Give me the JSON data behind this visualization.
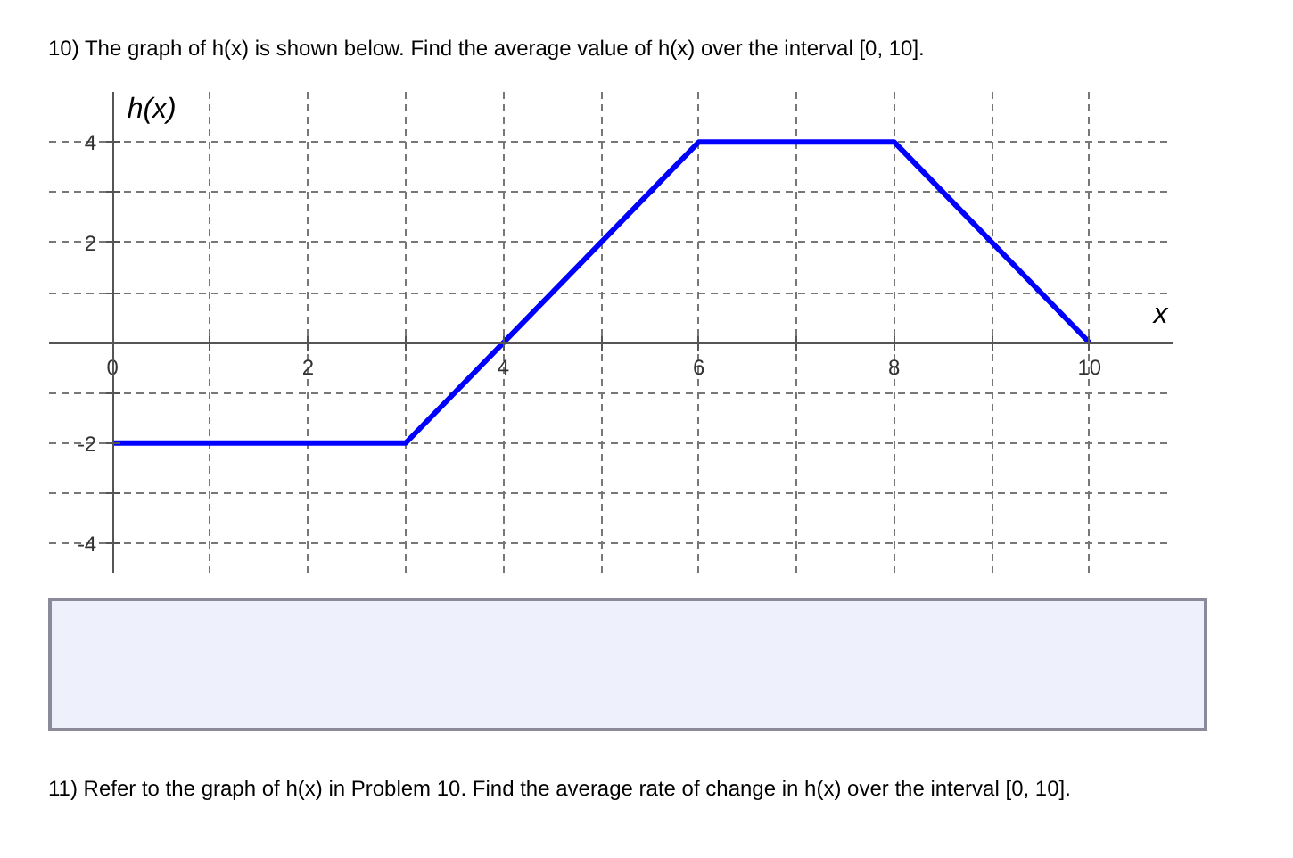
{
  "chart_data": {
    "type": "line",
    "title": "10) The graph of h(x) is shown below. Find the average value of h(x) over the interval [0, 10].",
    "xlabel": "x",
    "ylabel": "h(x)",
    "annotations": [
      "11) Refer to the graph of h(x) in Problem 10. Find the average rate of change in h(x) over the interval [0, 10]."
    ],
    "x": [
      0,
      3,
      6,
      8,
      10
    ],
    "series": [
      {
        "color": "#0000ff",
        "values": [
          -2,
          -2,
          4,
          4,
          0
        ]
      }
    ],
    "xlim": [
      -0.65,
      10.85
    ],
    "ylim": [
      -4.6,
      5.0
    ],
    "xticks": [
      {
        "value": 0,
        "label": "0"
      },
      {
        "value": 1,
        "label": null
      },
      2,
      {
        "value": 3,
        "label": null
      },
      4,
      {
        "value": 5,
        "label": null
      },
      6,
      {
        "value": 7,
        "label": null
      },
      8,
      {
        "value": 9,
        "label": null
      },
      10
    ],
    "yticks": [
      -4,
      {
        "value": -3,
        "label": null
      },
      -2,
      {
        "value": -1,
        "label": null
      },
      {
        "value": 0,
        "label": null
      },
      {
        "value": 1,
        "label": null
      },
      2,
      {
        "value": 3,
        "label": null
      },
      4
    ],
    "grid": true,
    "line_style": "solid",
    "marker": "none"
  }
}
